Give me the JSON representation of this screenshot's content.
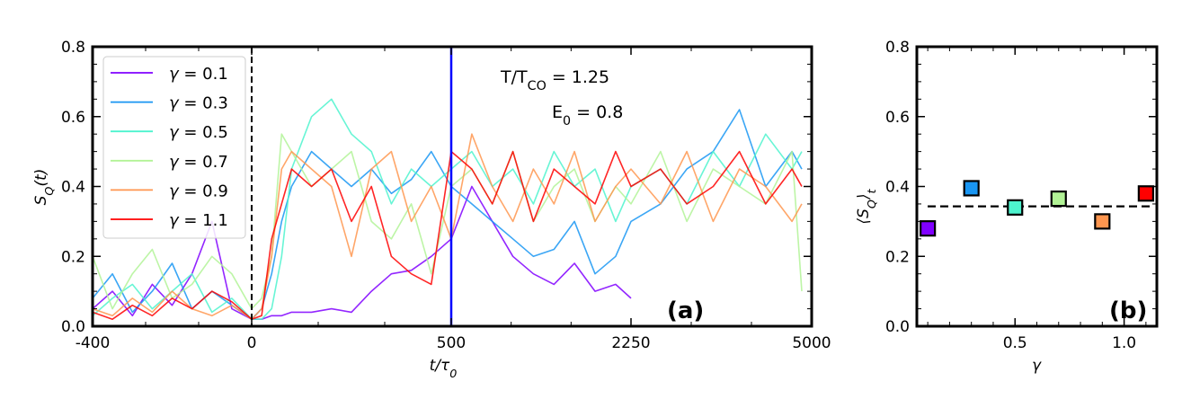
{
  "chart_data": [
    {
      "panel": "(a)",
      "type": "line",
      "xlabel": "t/τ_{0}",
      "ylabel": "S_{Q}(t)",
      "xticks": [
        -400,
        0,
        500,
        2250,
        5000
      ],
      "xtick_labels": [
        "-400",
        "0",
        "500",
        "2250",
        "5000"
      ],
      "x_scale": "piecewise-linear between tick labels",
      "xlim": [
        -400,
        5000
      ],
      "ylim": [
        0,
        0.8
      ],
      "yticks": [
        0.0,
        0.2,
        0.4,
        0.6,
        0.8
      ],
      "ytick_labels": [
        "0.0",
        "0.2",
        "0.4",
        "0.6",
        "0.8"
      ],
      "grid": false,
      "legend_position": "top-left",
      "annotations": [
        "T/T_{CO} = 1.25",
        "E_{0} = 0.8"
      ],
      "vlines": [
        {
          "x": 0,
          "style": "dashed",
          "color": "#000000"
        },
        {
          "x": 500,
          "style": "solid",
          "color": "#0000ff"
        }
      ],
      "x": [
        -400,
        -350,
        -300,
        -250,
        -200,
        -150,
        -100,
        -50,
        0,
        25,
        50,
        75,
        100,
        150,
        200,
        250,
        300,
        350,
        400,
        450,
        500,
        700,
        900,
        1100,
        1300,
        1500,
        1700,
        1900,
        2100,
        2250,
        2700,
        3100,
        3500,
        3900,
        4300,
        4700,
        4850
      ],
      "series": [
        {
          "name": "γ = 0.1",
          "color": "#8000ff",
          "values": [
            0.05,
            0.1,
            0.03,
            0.12,
            0.06,
            0.15,
            0.3,
            0.05,
            0.02,
            0.02,
            0.03,
            0.03,
            0.04,
            0.04,
            0.05,
            0.04,
            0.1,
            0.15,
            0.16,
            0.2,
            0.25,
            0.4,
            0.3,
            0.2,
            0.15,
            0.12,
            0.18,
            0.1,
            0.12,
            0.08,
            null,
            null,
            null,
            null,
            null,
            null,
            null
          ]
        },
        {
          "name": "γ = 0.3",
          "color": "#1996f3",
          "values": [
            0.08,
            0.15,
            0.04,
            0.1,
            0.18,
            0.05,
            0.1,
            0.06,
            0.02,
            0.05,
            0.15,
            0.3,
            0.4,
            0.5,
            0.45,
            0.4,
            0.45,
            0.38,
            0.42,
            0.5,
            0.4,
            0.35,
            0.3,
            0.25,
            0.2,
            0.22,
            0.3,
            0.15,
            0.2,
            0.3,
            0.35,
            0.45,
            0.5,
            0.62,
            0.4,
            0.5,
            0.45
          ]
        },
        {
          "name": "γ = 0.5",
          "color": "#4df3ce",
          "values": [
            0.03,
            0.08,
            0.12,
            0.05,
            0.1,
            0.15,
            0.04,
            0.08,
            0.02,
            0.02,
            0.05,
            0.2,
            0.45,
            0.6,
            0.65,
            0.55,
            0.5,
            0.35,
            0.45,
            0.4,
            0.45,
            0.5,
            0.4,
            0.45,
            0.35,
            0.5,
            0.4,
            0.45,
            0.3,
            0.4,
            0.45,
            0.35,
            0.5,
            0.4,
            0.55,
            0.45,
            0.5
          ]
        },
        {
          "name": "γ = 0.7",
          "color": "#b2f396",
          "values": [
            0.2,
            0.05,
            0.15,
            0.22,
            0.08,
            0.12,
            0.2,
            0.15,
            0.05,
            0.08,
            0.2,
            0.55,
            0.5,
            0.4,
            0.45,
            0.5,
            0.3,
            0.25,
            0.35,
            0.15,
            0.4,
            0.45,
            0.35,
            0.5,
            0.3,
            0.4,
            0.45,
            0.3,
            0.4,
            0.35,
            0.5,
            0.3,
            0.45,
            0.4,
            0.35,
            0.5,
            0.1
          ]
        },
        {
          "name": "γ = 0.9",
          "color": "#ff964f",
          "values": [
            0.05,
            0.03,
            0.08,
            0.04,
            0.1,
            0.05,
            0.03,
            0.06,
            0.02,
            0.05,
            0.2,
            0.45,
            0.5,
            0.45,
            0.4,
            0.2,
            0.45,
            0.5,
            0.3,
            0.4,
            0.25,
            0.55,
            0.4,
            0.3,
            0.45,
            0.35,
            0.5,
            0.3,
            0.4,
            0.45,
            0.35,
            0.5,
            0.3,
            0.45,
            0.4,
            0.3,
            0.35
          ]
        },
        {
          "name": "γ = 1.1",
          "color": "#ff0000",
          "values": [
            0.04,
            0.02,
            0.06,
            0.03,
            0.08,
            0.05,
            0.1,
            0.07,
            0.02,
            0.03,
            0.25,
            0.35,
            0.45,
            0.4,
            0.45,
            0.3,
            0.4,
            0.2,
            0.15,
            0.12,
            0.5,
            0.45,
            0.35,
            0.5,
            0.3,
            0.45,
            0.4,
            0.35,
            0.5,
            0.4,
            0.45,
            0.35,
            0.4,
            0.5,
            0.35,
            0.45,
            0.4
          ]
        }
      ]
    },
    {
      "panel": "(b)",
      "type": "scatter",
      "xlabel": "γ",
      "ylabel": "⟨S_{Q}⟩_{t}",
      "xlim": [
        0.05,
        1.15
      ],
      "ylim": [
        0,
        0.8
      ],
      "xticks": [
        0.5,
        1.0
      ],
      "xtick_labels": [
        "0.5",
        "1.0"
      ],
      "yticks": [
        0.0,
        0.2,
        0.4,
        0.6,
        0.8
      ],
      "ytick_labels": [
        "0.0",
        "0.2",
        "0.4",
        "0.6",
        "0.8"
      ],
      "grid": false,
      "marker": "square",
      "x": [
        0.1,
        0.3,
        0.5,
        0.7,
        0.9,
        1.1
      ],
      "values": [
        0.28,
        0.395,
        0.34,
        0.365,
        0.3,
        0.38
      ],
      "colors": [
        "#8000ff",
        "#1996f3",
        "#4df3ce",
        "#b2f396",
        "#ff964f",
        "#ff0000"
      ],
      "hline": {
        "y": 0.343,
        "style": "dashed",
        "color": "#000000"
      }
    }
  ]
}
